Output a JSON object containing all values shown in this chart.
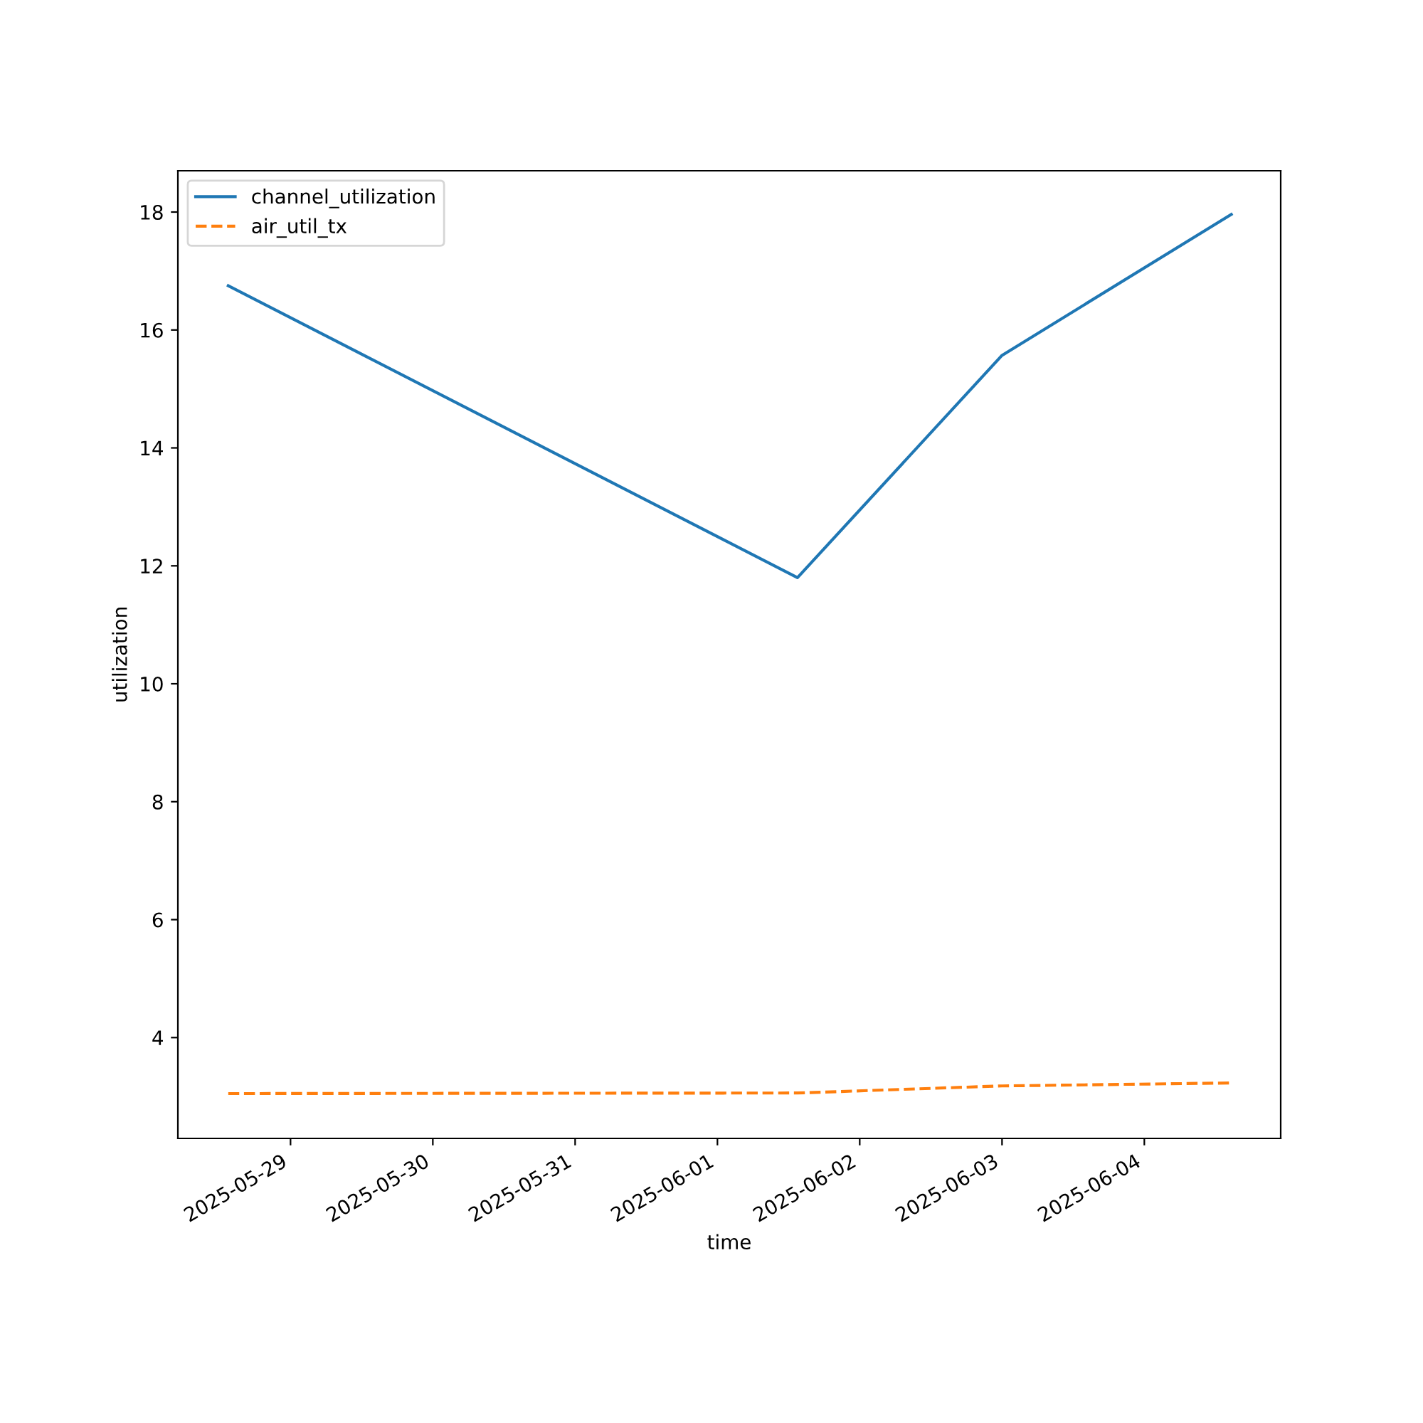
{
  "chart_data": {
    "type": "line",
    "xlabel": "time",
    "ylabel": "utilization",
    "x": [
      "2025-05-28T13:30",
      "2025-06-01T13:30",
      "2025-06-03T00:00",
      "2025-06-04T14:40"
    ],
    "series": [
      {
        "name": "channel_utilization",
        "color": "#1f77b4",
        "values": [
          16.75,
          11.8,
          15.57,
          17.96
        ],
        "line_style": "solid"
      },
      {
        "name": "air_util_tx",
        "color": "#ff7f0e",
        "values": [
          3.05,
          3.06,
          3.18,
          3.23
        ],
        "line_style": "dashed"
      }
    ],
    "xlim": [
      "2025-05-28T05:00",
      "2025-06-04T23:00"
    ],
    "xticks": [
      "2025-05-29",
      "2025-05-30",
      "2025-05-31",
      "2025-06-01",
      "2025-06-02",
      "2025-06-03",
      "2025-06-04"
    ],
    "ylim": [
      2.29,
      18.7
    ],
    "yticks": [
      4,
      6,
      8,
      10,
      12,
      14,
      16,
      18
    ],
    "legend": "top left",
    "grid": false
  }
}
